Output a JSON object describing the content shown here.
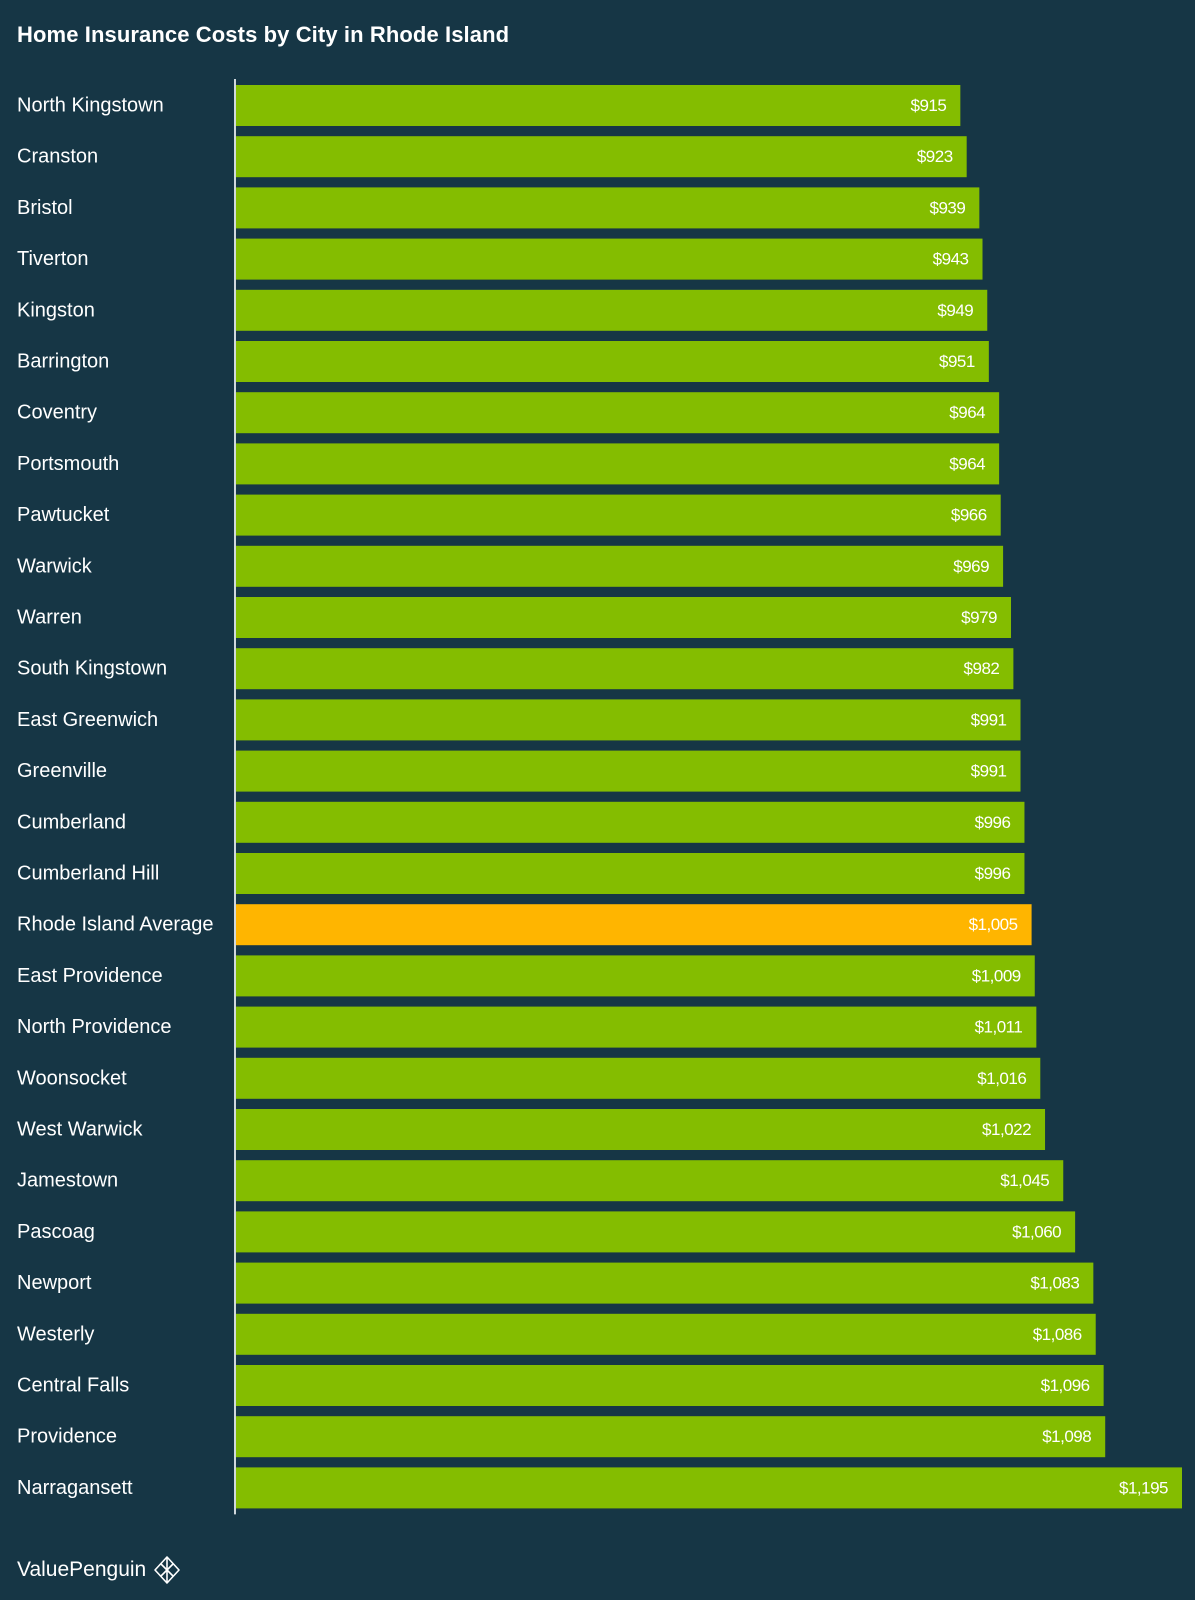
{
  "chart_data": {
    "type": "bar",
    "orientation": "horizontal",
    "title": "Home Insurance Costs by City in Rhode Island",
    "categories": [
      "North Kingstown",
      "Cranston",
      "Bristol",
      "Tiverton",
      "Kingston",
      "Barrington",
      "Coventry",
      "Portsmouth",
      "Pawtucket",
      "Warwick",
      "Warren",
      "South Kingstown",
      "East Greenwich",
      "Greenville",
      "Cumberland",
      "Cumberland Hill",
      "Rhode Island Average",
      "East Providence",
      "North Providence",
      "Woonsocket",
      "West Warwick",
      "Jamestown",
      "Pascoag",
      "Newport",
      "Westerly",
      "Central Falls",
      "Providence",
      "Narragansett"
    ],
    "values": [
      915,
      923,
      939,
      943,
      949,
      951,
      964,
      964,
      966,
      969,
      979,
      982,
      991,
      991,
      996,
      996,
      1005,
      1009,
      1011,
      1016,
      1022,
      1045,
      1060,
      1083,
      1086,
      1096,
      1098,
      1195
    ],
    "value_labels": [
      "$915",
      "$923",
      "$939",
      "$943",
      "$949",
      "$951",
      "$964",
      "$964",
      "$966",
      "$969",
      "$979",
      "$982",
      "$991",
      "$991",
      "$996",
      "$996",
      "$1,005",
      "$1,009",
      "$1,011",
      "$1,016",
      "$1,022",
      "$1,045",
      "$1,060",
      "$1,083",
      "$1,086",
      "$1,096",
      "$1,098",
      "$1,195"
    ],
    "highlight_category": "Rhode Island Average",
    "xlim": [
      0,
      1195
    ],
    "grid": false,
    "legend": "none",
    "colors": {
      "background": "#163645",
      "bar": "#84BD00",
      "highlight_bar": "#FFB500",
      "axis_line": "#d0d8dc",
      "text": "#ffffff"
    }
  },
  "footer": {
    "brand": "ValuePenguin"
  }
}
